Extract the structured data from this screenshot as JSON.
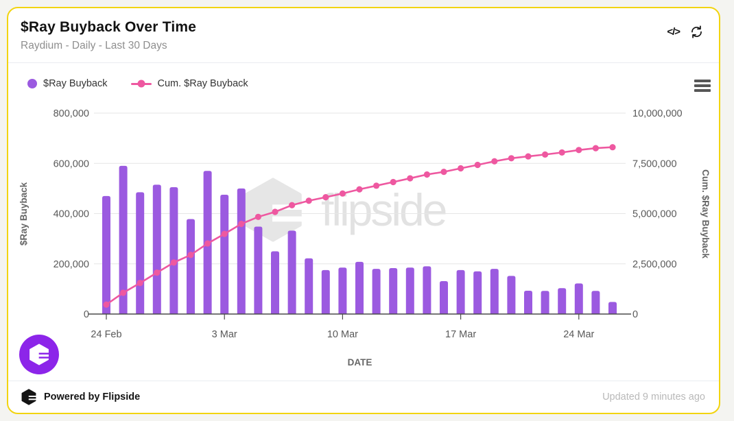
{
  "header": {
    "title": "$Ray Buyback Over Time",
    "subtitle": "Raydium - Daily - Last 30 Days",
    "code_icon_label": "</>"
  },
  "legend": {
    "items": [
      {
        "label": "$Ray Buyback",
        "color": "#9B5AE0",
        "marker": "circle"
      },
      {
        "label": "Cum. $Ray Buyback",
        "color": "#EE58A0",
        "marker": "line"
      }
    ]
  },
  "watermark": {
    "text": "flipside"
  },
  "footer": {
    "powered_by": "Powered by Flipside",
    "updated": "Updated 9 minutes ago"
  },
  "colors": {
    "card_border": "#F2D40F",
    "bar": "#9B5AE0",
    "line": "#EE58A0",
    "fab_background": "#8C25E9",
    "grid": "#e6e6e6",
    "axis_line": "#4a4a4a",
    "tick_label": "#595959",
    "axis_title": "#666666"
  },
  "chart_data": {
    "type": "bar",
    "title": "$Ray Buyback Over Time",
    "subtitle": "Raydium - Daily - Last 30 Days",
    "x_axis_title": "DATE",
    "grid": true,
    "legend_position": "top-left",
    "x_tick_labels": [
      "24 Feb",
      "3 Mar",
      "10 Mar",
      "17 Mar",
      "24 Mar"
    ],
    "x_tick_day_index": [
      0,
      7,
      14,
      21,
      28
    ],
    "dates": [
      "24 Feb",
      "25 Feb",
      "26 Feb",
      "27 Feb",
      "28 Feb",
      "1 Mar",
      "2 Mar",
      "3 Mar",
      "4 Mar",
      "5 Mar",
      "6 Mar",
      "7 Mar",
      "8 Mar",
      "9 Mar",
      "10 Mar",
      "11 Mar",
      "12 Mar",
      "13 Mar",
      "14 Mar",
      "15 Mar",
      "16 Mar",
      "17 Mar",
      "18 Mar",
      "19 Mar",
      "20 Mar",
      "21 Mar",
      "22 Mar",
      "23 Mar",
      "24 Mar",
      "25 Mar",
      "26 Mar"
    ],
    "series": [
      {
        "name": "$Ray Buyback",
        "type": "bar",
        "axis": "left",
        "color": "#9B5AE0",
        "values": [
          470000,
          590000,
          485000,
          515000,
          505000,
          378000,
          570000,
          475000,
          500000,
          348000,
          250000,
          332000,
          222000,
          175000,
          185000,
          208000,
          180000,
          183000,
          185000,
          190000,
          131000,
          175000,
          170000,
          180000,
          152000,
          93000,
          92000,
          103000,
          122000,
          92000,
          48000
        ]
      },
      {
        "name": "Cum. $Ray Buyback",
        "type": "line",
        "axis": "right",
        "color": "#EE58A0",
        "values": [
          470000,
          1060000,
          1545000,
          2060000,
          2565000,
          2943000,
          3513000,
          3988000,
          4488000,
          4836000,
          5086000,
          5418000,
          5640000,
          5815000,
          6000000,
          6208000,
          6388000,
          6571000,
          6756000,
          6946000,
          7077000,
          7252000,
          7422000,
          7602000,
          7754000,
          7847000,
          7939000,
          8042000,
          8164000,
          8256000,
          8304000
        ]
      }
    ],
    "left_axis": {
      "title": "$Ray Buyback",
      "range": [
        0,
        800000
      ],
      "ticks": [
        "0",
        "200,000",
        "400,000",
        "600,000",
        "800,000"
      ]
    },
    "right_axis": {
      "title": "Cum. $Ray Buyback",
      "range": [
        0,
        10000000
      ],
      "ticks": [
        "0",
        "2,500,000",
        "5,000,000",
        "7,500,000",
        "10,000,000"
      ]
    }
  }
}
